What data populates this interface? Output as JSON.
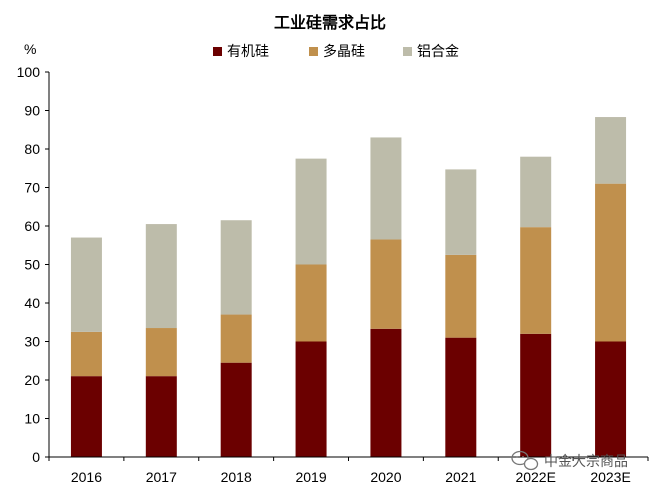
{
  "chart_data": {
    "type": "bar",
    "stacked": true,
    "title": "工业硅需求占比",
    "ylabel": "%",
    "xlabel": "",
    "ylim": [
      0,
      100
    ],
    "yticks": [
      0,
      10,
      20,
      30,
      40,
      50,
      60,
      70,
      80,
      90,
      100
    ],
    "categories": [
      "2016",
      "2017",
      "2018",
      "2019",
      "2020",
      "2021",
      "2022E",
      "2023E"
    ],
    "series": [
      {
        "name": "有机硅",
        "color": "#6b0000",
        "values": [
          21,
          21,
          24.5,
          30,
          33.3,
          31,
          32,
          30
        ]
      },
      {
        "name": "多晶硅",
        "color": "#c0904d",
        "values": [
          11.5,
          12.5,
          12.5,
          20,
          23.2,
          21.5,
          27.7,
          41
        ]
      },
      {
        "name": "铝合金",
        "color": "#bdbcaa",
        "values": [
          24.5,
          27,
          24.5,
          27.5,
          26.5,
          22.2,
          18.3,
          17.3
        ]
      }
    ],
    "legend_position": "top",
    "grid": false
  },
  "watermark": {
    "text": "中金大宗商品",
    "icon": "wechat-icon"
  }
}
